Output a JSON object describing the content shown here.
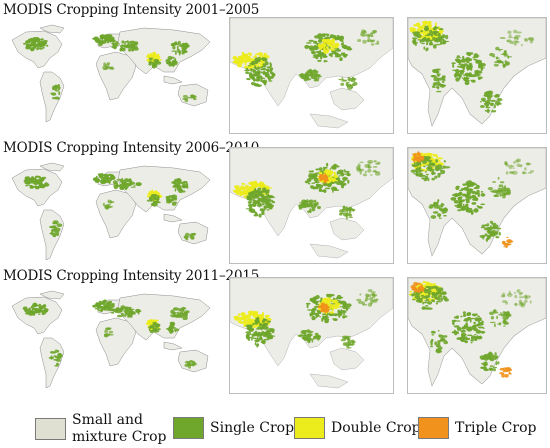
{
  "periods": [
    {
      "title": "MODIS Cropping Intensity 2001–2005"
    },
    {
      "title": "MODIS Cropping Intensity 2006–2010"
    },
    {
      "title": "MODIS Cropping Intensity 2011–2015"
    }
  ],
  "legend": [
    {
      "label": "Small and\nmixture Crop",
      "color": "#dfe0d2"
    },
    {
      "label": "Single Crop",
      "color": "#6fa62c"
    },
    {
      "label": "Double Crop",
      "color": "#ecec1c"
    },
    {
      "label": "Triple Crop",
      "color": "#f0921c"
    }
  ],
  "colors": {
    "land": "#ededE8",
    "outline": "#8a8a8a",
    "single": "#6fa62c",
    "double": "#ecec1c",
    "triple": "#f0921c"
  }
}
